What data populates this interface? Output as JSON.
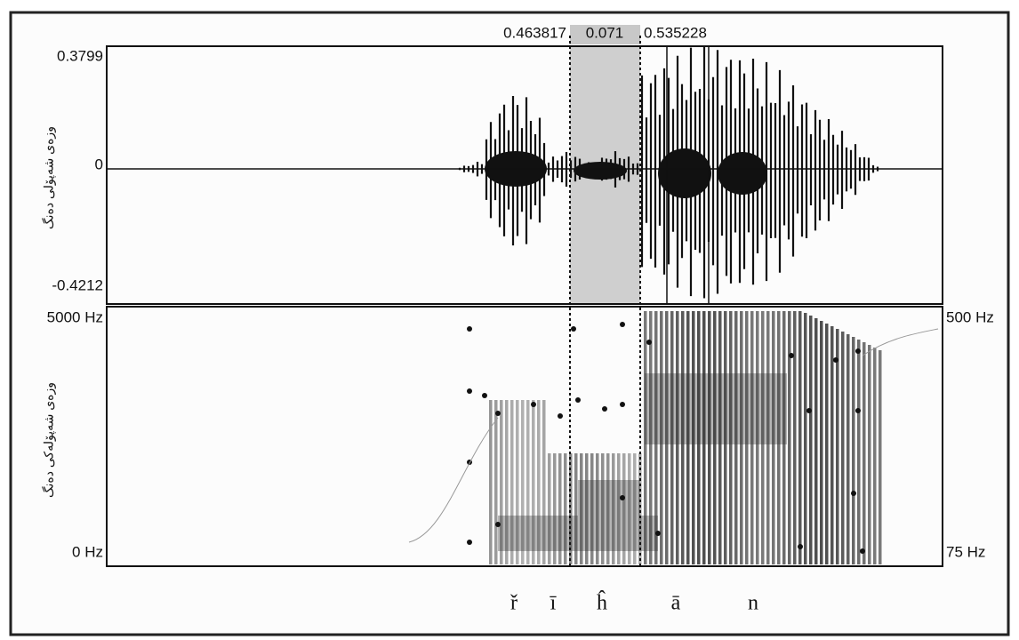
{
  "selection": {
    "left": "0.463817",
    "width": "0.071",
    "right": "0.535228"
  },
  "waveform": {
    "y_axis_label": "وزەی شەپۆلی دەنگ",
    "max": "0.3799",
    "zero": "0",
    "min": "-0.4212"
  },
  "spectrogram": {
    "y_axis_label": "وزەی شەپۆلەکی دەنگ",
    "max": "5000 Hz",
    "min": "0 Hz",
    "pitch_max": "500 Hz",
    "pitch_min": "75 Hz"
  },
  "phonemes": [
    "ř",
    "ī",
    "ĥ",
    "ā",
    "n"
  ]
}
